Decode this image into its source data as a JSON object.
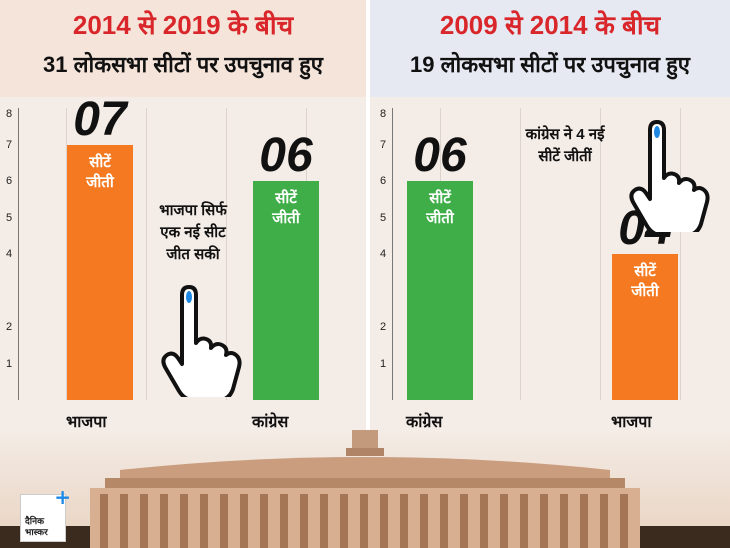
{
  "left": {
    "period": "2014 से 2019 के बीच",
    "description": "31 लोकसभा सीटों पर उपचुनाव हुए",
    "annotation": "भाजपा सिर्फ\nएक नई सीट\nजीत सकी"
  },
  "right": {
    "period": "2009 से 2014 के बीच",
    "description": "19 लोकसभा सीटों पर उपचुनाव हुए",
    "annotation": "कांग्रेस ने 4 नई\nसीटें जीतीं"
  },
  "bar_label": "सीटें\nजीती",
  "y_ticks": [
    "8",
    "7",
    "6",
    "5",
    "4",
    "2",
    "1"
  ],
  "colors": {
    "bjp": "#f47920",
    "congress": "#3fae49",
    "accent": "#d9262a"
  },
  "icons": [
    "pointing-hand-inked-finger-icon",
    "parliament-building-image",
    "dainik-bhaskar-logo"
  ],
  "logo": {
    "line1": "दैनिक",
    "line2": "भास्कर",
    "plus": "+"
  },
  "chart_data": [
    {
      "type": "bar",
      "title": "2014 से 2019 के बीच",
      "subtitle": "31 लोकसभा सीटों पर उपचुनाव हुए",
      "categories": [
        "भाजपा",
        "कांग्रेस"
      ],
      "values": [
        7,
        6
      ],
      "value_labels": [
        "07",
        "06"
      ],
      "colors": [
        "#f47920",
        "#3fae49"
      ],
      "ylim": [
        0,
        8
      ],
      "grid": true
    },
    {
      "type": "bar",
      "title": "2009 से 2014 के बीच",
      "subtitle": "19 लोकसभा सीटों पर उपचुनाव हुए",
      "categories": [
        "कांग्रेस",
        "भाजपा"
      ],
      "values": [
        6,
        4
      ],
      "value_labels": [
        "06",
        "04"
      ],
      "colors": [
        "#3fae49",
        "#f47920"
      ],
      "ylim": [
        0,
        8
      ],
      "grid": true
    }
  ]
}
